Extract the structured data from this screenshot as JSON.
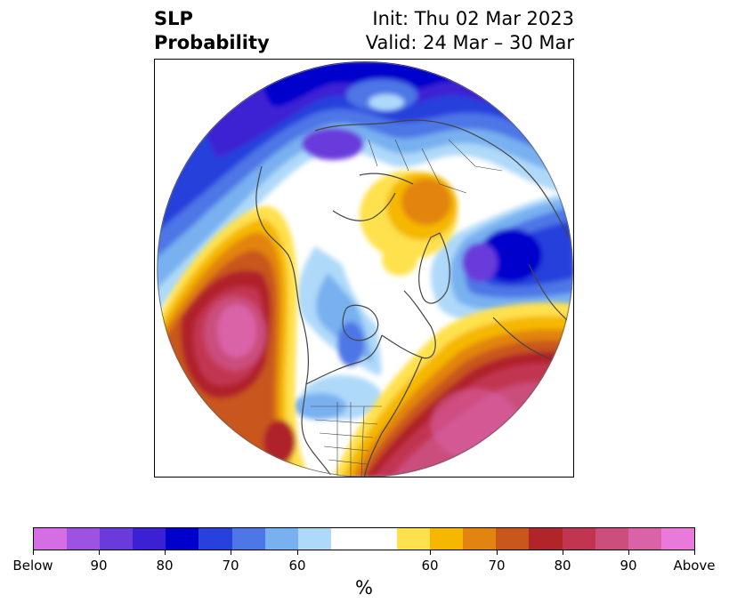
{
  "title": {
    "left_line1": "SLP",
    "left_line2": "Probability",
    "right_line1": "Init: Thu 02 Mar 2023",
    "right_line2": "Valid: 24 Mar – 30 Mar"
  },
  "map": {
    "projection": "north polar stereographic",
    "variable": "SLP probability",
    "anomalies": [
      {
        "category": "above",
        "region": "north pacific",
        "peak_percent": "90+"
      },
      {
        "category": "above",
        "region": "north atlantic / us east coast",
        "peak_percent": "90+"
      },
      {
        "category": "above",
        "region": "arctic ocean",
        "peak_percent": "70"
      },
      {
        "category": "below",
        "region": "north europe / russia",
        "peak_percent": "90+"
      },
      {
        "category": "below",
        "region": "north china / mongolia",
        "peak_percent": "90+"
      },
      {
        "category": "below",
        "region": "greenland / north atlantic",
        "peak_percent": "90+"
      },
      {
        "category": "below",
        "region": "central canada",
        "peak_percent": "70"
      }
    ]
  },
  "colorbar": {
    "colors": [
      "#d56de4",
      "#9e52e2",
      "#6a3adb",
      "#3c20d4",
      "#0000cc",
      "#2840dc",
      "#4d76e6",
      "#78b0f0",
      "#afd9f9",
      "#ffffff",
      "#ffe14e",
      "#f5b700",
      "#e28410",
      "#c9561b",
      "#b0242a",
      "#c23551",
      "#cb4e7c",
      "#da62a7",
      "#ea79dc"
    ],
    "tick_labels": [
      "Below",
      "90",
      "80",
      "70",
      "60",
      "60",
      "70",
      "80",
      "90",
      "Above"
    ],
    "unit": "%"
  }
}
